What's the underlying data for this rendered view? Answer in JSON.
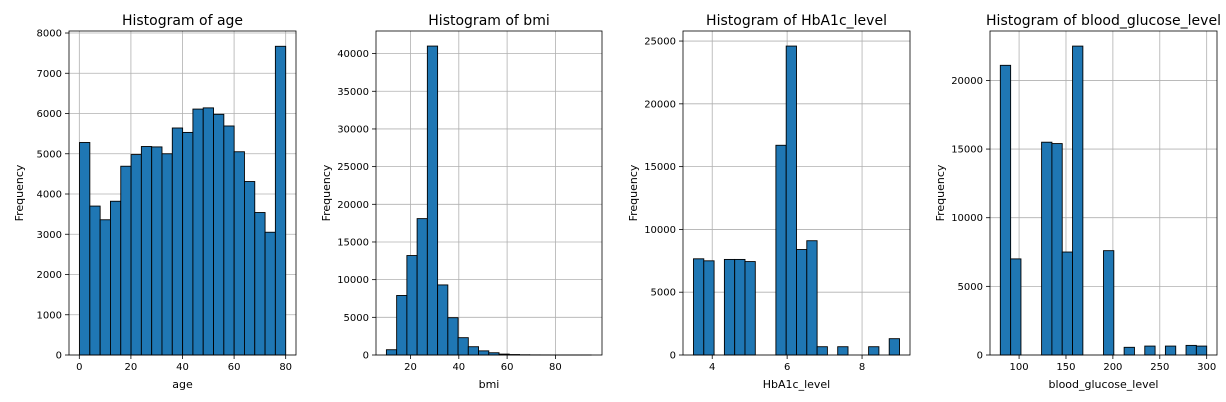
{
  "chart_data": [
    {
      "type": "bar",
      "title": "Histogram of age",
      "xlabel": "age",
      "ylabel": "Frequency",
      "bin_start": 0.08,
      "bin_width": 3.996,
      "values": [
        5280,
        3700,
        3360,
        3820,
        4690,
        4980,
        5180,
        5170,
        5000,
        5640,
        5530,
        6110,
        6140,
        5980,
        5690,
        5050,
        4310,
        3540,
        3050,
        7670
      ],
      "xlim": [
        -4,
        84
      ],
      "ylim": [
        0,
        8050
      ],
      "xticks": [
        0,
        20,
        40,
        60,
        80
      ],
      "yticks": [
        0,
        1000,
        2000,
        3000,
        4000,
        5000,
        6000,
        7000,
        8000
      ],
      "grid": true
    },
    {
      "type": "bar",
      "title": "Histogram of bmi",
      "xlabel": "bmi",
      "ylabel": "Frequency",
      "bin_start": 10.01,
      "bin_width": 4.24,
      "values": [
        700,
        7900,
        13200,
        18100,
        41000,
        9300,
        4950,
        2300,
        1100,
        550,
        300,
        120,
        60,
        30,
        15,
        10,
        5,
        3,
        2,
        2
      ],
      "xlim": [
        5.7,
        99.3
      ],
      "ylim": [
        0,
        43000
      ],
      "xticks": [
        20,
        40,
        60,
        80
      ],
      "yticks": [
        0,
        5000,
        10000,
        15000,
        20000,
        25000,
        30000,
        35000,
        40000
      ],
      "grid": true
    },
    {
      "type": "bar",
      "title": "Histogram of HbA1c_level",
      "xlabel": "HbA1c_level",
      "ylabel": "Frequency",
      "bin_start": 3.5,
      "bin_width": 0.275,
      "values": [
        7660,
        7500,
        0,
        7610,
        7610,
        7440,
        0,
        0,
        16700,
        24600,
        8400,
        9100,
        660,
        0,
        660,
        0,
        0,
        660,
        0,
        1300
      ],
      "xlim": [
        3.22,
        9.28
      ],
      "ylim": [
        0,
        25800
      ],
      "xticks": [
        4,
        6,
        8
      ],
      "yticks": [
        0,
        5000,
        10000,
        15000,
        20000,
        25000
      ],
      "grid": true
    },
    {
      "type": "bar",
      "title": "Histogram of blood_glucose_level",
      "xlabel": "blood_glucose_level",
      "ylabel": "Frequency",
      "bin_start": 80,
      "bin_width": 11,
      "values": [
        21100,
        7000,
        0,
        0,
        15500,
        15400,
        7500,
        22500,
        0,
        0,
        7600,
        0,
        560,
        0,
        650,
        0,
        650,
        0,
        700,
        650
      ],
      "xlim": [
        69,
        311
      ],
      "ylim": [
        0,
        23600
      ],
      "xticks": [
        100,
        150,
        200,
        250,
        300
      ],
      "yticks": [
        0,
        5000,
        10000,
        15000,
        20000
      ],
      "grid": true
    }
  ]
}
